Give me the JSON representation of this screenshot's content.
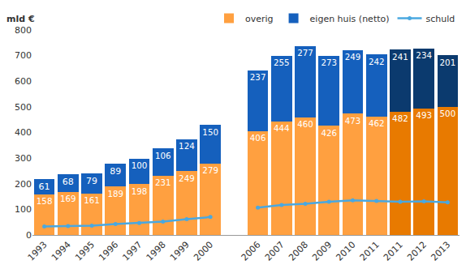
{
  "chart_data": {
    "type": "bar",
    "y_label": "mld €",
    "categories": [
      "1993",
      "1994",
      "1995",
      "1996",
      "1997",
      "1998",
      "1999",
      "2000",
      null,
      "2006",
      "2007",
      "2008",
      "2009",
      "2010",
      "2011",
      "2011",
      "2012",
      "2013"
    ],
    "stacked": true,
    "data_labels": true,
    "grid": false,
    "legend": "top-right",
    "ylim": [
      0,
      800
    ],
    "yticks": [
      0,
      100,
      200,
      300,
      400,
      500,
      600,
      700,
      800
    ],
    "series": [
      {
        "name": "overig",
        "type": "bar",
        "colors": [
          "#ffa040",
          "#ffa040",
          "#ffa040",
          "#ffa040",
          "#ffa040",
          "#ffa040",
          "#ffa040",
          "#ffa040",
          "#ffa040",
          "#ffa040",
          "#ffa040",
          "#ffa040",
          "#ffa040",
          "#ffa040",
          "#ffa040",
          "#e87a00",
          "#e87a00",
          "#e87a00"
        ],
        "values": [
          158,
          169,
          161,
          189,
          198,
          231,
          249,
          279,
          null,
          406,
          444,
          460,
          426,
          473,
          462,
          482,
          493,
          500
        ]
      },
      {
        "name": "eigen huis (netto)",
        "type": "bar",
        "colors": [
          "#1560bd",
          "#1560bd",
          "#1560bd",
          "#1560bd",
          "#1560bd",
          "#1560bd",
          "#1560bd",
          "#1560bd",
          "#1560bd",
          "#1560bd",
          "#1560bd",
          "#1560bd",
          "#1560bd",
          "#1560bd",
          "#1560bd",
          "#0b3a6e",
          "#0b3a6e",
          "#0b3a6e"
        ],
        "values": [
          61,
          68,
          79,
          89,
          100,
          106,
          124,
          150,
          null,
          237,
          255,
          277,
          273,
          249,
          242,
          241,
          234,
          201
        ]
      },
      {
        "name": "schuld",
        "type": "line",
        "color": "#4aa8e0",
        "marker": "circle",
        "values": [
          33,
          35,
          36,
          43,
          47,
          52,
          62,
          70,
          null,
          107,
          117,
          122,
          130,
          135,
          133,
          130,
          131,
          127
        ]
      }
    ]
  }
}
